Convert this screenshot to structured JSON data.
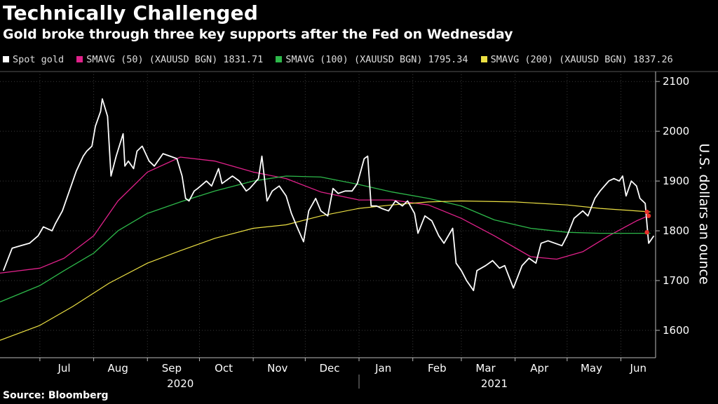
{
  "title": "Technically Challenged",
  "subtitle": "Gold broke through three key supports after the Fed on Wednesday",
  "source": "Source: Bloomberg",
  "legend": [
    {
      "label": "Spot gold",
      "color": "#ffffff"
    },
    {
      "label": "SMAVG (50) (XAUUSD BGN) 1831.71",
      "color": "#e0218a"
    },
    {
      "label": "SMAVG (100) (XAUUSD BGN) 1795.34",
      "color": "#2db84a"
    },
    {
      "label": "SMAVG (200) (XAUUSD BGN) 1837.26",
      "color": "#ece043"
    }
  ],
  "chart_data": {
    "type": "line",
    "ylabel": "U.S. dollars an ounce",
    "ylim": [
      1545,
      2120
    ],
    "xlim": [
      "2020-06-08",
      "2021-06-21"
    ],
    "yticks": [
      1600,
      1700,
      1800,
      1900,
      2000,
      2100
    ],
    "months": [
      {
        "label": "Jul",
        "date": "2020-07-15"
      },
      {
        "label": "Aug",
        "date": "2020-08-15"
      },
      {
        "label": "Sep",
        "date": "2020-09-15"
      },
      {
        "label": "Oct",
        "date": "2020-10-15"
      },
      {
        "label": "Nov",
        "date": "2020-11-15"
      },
      {
        "label": "Dec",
        "date": "2020-12-15"
      },
      {
        "label": "Jan",
        "date": "2021-01-15"
      },
      {
        "label": "Feb",
        "date": "2021-02-15"
      },
      {
        "label": "Mar",
        "date": "2021-03-15"
      },
      {
        "label": "Apr",
        "date": "2021-04-15"
      },
      {
        "label": "May",
        "date": "2021-05-15"
      },
      {
        "label": "Jun",
        "date": "2021-06-11"
      }
    ],
    "month_starts": [
      "2020-07-01",
      "2020-08-01",
      "2020-09-01",
      "2020-10-01",
      "2020-11-01",
      "2020-12-01",
      "2021-01-01",
      "2021-02-01",
      "2021-03-01",
      "2021-04-01",
      "2021-05-01",
      "2021-06-01"
    ],
    "years": [
      {
        "label": "2020",
        "date": "2020-09-20"
      },
      {
        "label": "2021",
        "date": "2021-03-20"
      }
    ],
    "year_divider": "2021-01-01",
    "series": [
      {
        "name": "Spot gold",
        "color": "#ffffff",
        "width": 1.8,
        "points": [
          [
            "2020-06-10",
            1720
          ],
          [
            "2020-06-15",
            1765
          ],
          [
            "2020-06-20",
            1770
          ],
          [
            "2020-06-25",
            1775
          ],
          [
            "2020-06-30",
            1790
          ],
          [
            "2020-07-03",
            1808
          ],
          [
            "2020-07-08",
            1800
          ],
          [
            "2020-07-10",
            1815
          ],
          [
            "2020-07-14",
            1840
          ],
          [
            "2020-07-18",
            1880
          ],
          [
            "2020-07-22",
            1920
          ],
          [
            "2020-07-26",
            1950
          ],
          [
            "2020-07-28",
            1960
          ],
          [
            "2020-07-31",
            1970
          ],
          [
            "2020-08-02",
            2010
          ],
          [
            "2020-08-05",
            2040
          ],
          [
            "2020-08-06",
            2065
          ],
          [
            "2020-08-09",
            2030
          ],
          [
            "2020-08-11",
            1910
          ],
          [
            "2020-08-14",
            1950
          ],
          [
            "2020-08-18",
            1995
          ],
          [
            "2020-08-19",
            1930
          ],
          [
            "2020-08-21",
            1940
          ],
          [
            "2020-08-24",
            1925
          ],
          [
            "2020-08-26",
            1960
          ],
          [
            "2020-08-29",
            1970
          ],
          [
            "2020-09-02",
            1940
          ],
          [
            "2020-09-05",
            1930
          ],
          [
            "2020-09-10",
            1955
          ],
          [
            "2020-09-14",
            1950
          ],
          [
            "2020-09-18",
            1945
          ],
          [
            "2020-09-21",
            1910
          ],
          [
            "2020-09-23",
            1865
          ],
          [
            "2020-09-25",
            1860
          ],
          [
            "2020-09-28",
            1880
          ],
          [
            "2020-09-30",
            1885
          ],
          [
            "2020-10-05",
            1900
          ],
          [
            "2020-10-08",
            1890
          ],
          [
            "2020-10-12",
            1925
          ],
          [
            "2020-10-14",
            1895
          ],
          [
            "2020-10-20",
            1910
          ],
          [
            "2020-10-24",
            1900
          ],
          [
            "2020-10-28",
            1880
          ],
          [
            "2020-10-30",
            1885
          ],
          [
            "2020-11-04",
            1905
          ],
          [
            "2020-11-06",
            1950
          ],
          [
            "2020-11-09",
            1860
          ],
          [
            "2020-11-12",
            1880
          ],
          [
            "2020-11-16",
            1890
          ],
          [
            "2020-11-20",
            1870
          ],
          [
            "2020-11-23",
            1835
          ],
          [
            "2020-11-26",
            1810
          ],
          [
            "2020-11-30",
            1778
          ],
          [
            "2020-12-03",
            1840
          ],
          [
            "2020-12-07",
            1865
          ],
          [
            "2020-12-10",
            1840
          ],
          [
            "2020-12-14",
            1830
          ],
          [
            "2020-12-17",
            1885
          ],
          [
            "2020-12-20",
            1875
          ],
          [
            "2020-12-24",
            1880
          ],
          [
            "2020-12-28",
            1880
          ],
          [
            "2020-12-31",
            1895
          ],
          [
            "2021-01-04",
            1945
          ],
          [
            "2021-01-06",
            1950
          ],
          [
            "2021-01-08",
            1850
          ],
          [
            "2021-01-11",
            1850
          ],
          [
            "2021-01-14",
            1845
          ],
          [
            "2021-01-18",
            1840
          ],
          [
            "2021-01-22",
            1860
          ],
          [
            "2021-01-26",
            1850
          ],
          [
            "2021-01-29",
            1860
          ],
          [
            "2021-02-02",
            1835
          ],
          [
            "2021-02-04",
            1795
          ],
          [
            "2021-02-08",
            1830
          ],
          [
            "2021-02-12",
            1820
          ],
          [
            "2021-02-16",
            1790
          ],
          [
            "2021-02-19",
            1775
          ],
          [
            "2021-02-24",
            1805
          ],
          [
            "2021-02-26",
            1735
          ],
          [
            "2021-03-01",
            1720
          ],
          [
            "2021-03-04",
            1700
          ],
          [
            "2021-03-08",
            1680
          ],
          [
            "2021-03-10",
            1720
          ],
          [
            "2021-03-15",
            1730
          ],
          [
            "2021-03-19",
            1740
          ],
          [
            "2021-03-23",
            1725
          ],
          [
            "2021-03-26",
            1730
          ],
          [
            "2021-03-31",
            1685
          ],
          [
            "2021-04-05",
            1730
          ],
          [
            "2021-04-09",
            1745
          ],
          [
            "2021-04-13",
            1735
          ],
          [
            "2021-04-16",
            1775
          ],
          [
            "2021-04-20",
            1780
          ],
          [
            "2021-04-24",
            1775
          ],
          [
            "2021-04-28",
            1770
          ],
          [
            "2021-05-01",
            1790
          ],
          [
            "2021-05-05",
            1825
          ],
          [
            "2021-05-10",
            1840
          ],
          [
            "2021-05-13",
            1830
          ],
          [
            "2021-05-17",
            1865
          ],
          [
            "2021-05-20",
            1880
          ],
          [
            "2021-05-25",
            1900
          ],
          [
            "2021-05-28",
            1905
          ],
          [
            "2021-05-31",
            1900
          ],
          [
            "2021-06-02",
            1910
          ],
          [
            "2021-06-04",
            1870
          ],
          [
            "2021-06-07",
            1900
          ],
          [
            "2021-06-10",
            1890
          ],
          [
            "2021-06-12",
            1865
          ],
          [
            "2021-06-15",
            1855
          ],
          [
            "2021-06-16",
            1815
          ],
          [
            "2021-06-17",
            1775
          ],
          [
            "2021-06-18",
            1780
          ],
          [
            "2021-06-20",
            1790
          ]
        ]
      },
      {
        "name": "SMAVG (50) (XAUUSD BGN) 1831.71",
        "color": "#e0218a",
        "width": 1.3,
        "points": [
          [
            "2020-06-08",
            1715
          ],
          [
            "2020-07-01",
            1725
          ],
          [
            "2020-07-15",
            1745
          ],
          [
            "2020-08-01",
            1790
          ],
          [
            "2020-08-15",
            1860
          ],
          [
            "2020-09-01",
            1918
          ],
          [
            "2020-09-20",
            1948
          ],
          [
            "2020-10-10",
            1940
          ],
          [
            "2020-11-01",
            1918
          ],
          [
            "2020-11-20",
            1905
          ],
          [
            "2020-12-10",
            1878
          ],
          [
            "2021-01-01",
            1862
          ],
          [
            "2021-01-20",
            1862
          ],
          [
            "2021-02-10",
            1852
          ],
          [
            "2021-03-01",
            1825
          ],
          [
            "2021-03-20",
            1790
          ],
          [
            "2021-04-10",
            1748
          ],
          [
            "2021-04-25",
            1743
          ],
          [
            "2021-05-10",
            1758
          ],
          [
            "2021-05-25",
            1790
          ],
          [
            "2021-06-10",
            1820
          ],
          [
            "2021-06-18",
            1832
          ]
        ]
      },
      {
        "name": "SMAVG (100) (XAUUSD BGN) 1795.34",
        "color": "#2db84a",
        "width": 1.3,
        "points": [
          [
            "2020-06-08",
            1657
          ],
          [
            "2020-07-01",
            1690
          ],
          [
            "2020-07-15",
            1720
          ],
          [
            "2020-08-01",
            1755
          ],
          [
            "2020-08-15",
            1800
          ],
          [
            "2020-09-01",
            1835
          ],
          [
            "2020-09-20",
            1858
          ],
          [
            "2020-10-10",
            1880
          ],
          [
            "2020-11-01",
            1900
          ],
          [
            "2020-11-20",
            1910
          ],
          [
            "2020-12-10",
            1908
          ],
          [
            "2021-01-01",
            1893
          ],
          [
            "2021-01-20",
            1878
          ],
          [
            "2021-02-10",
            1865
          ],
          [
            "2021-03-01",
            1850
          ],
          [
            "2021-03-20",
            1822
          ],
          [
            "2021-04-10",
            1805
          ],
          [
            "2021-05-01",
            1797
          ],
          [
            "2021-05-20",
            1795
          ],
          [
            "2021-06-18",
            1795
          ]
        ]
      },
      {
        "name": "SMAVG (200) (XAUUSD BGN) 1837.26",
        "color": "#ece043",
        "width": 1.2,
        "points": [
          [
            "2020-06-08",
            1580
          ],
          [
            "2020-07-01",
            1610
          ],
          [
            "2020-07-20",
            1648
          ],
          [
            "2020-08-10",
            1695
          ],
          [
            "2020-09-01",
            1735
          ],
          [
            "2020-09-20",
            1760
          ],
          [
            "2020-10-10",
            1785
          ],
          [
            "2020-11-01",
            1805
          ],
          [
            "2020-11-20",
            1812
          ],
          [
            "2020-12-10",
            1830
          ],
          [
            "2021-01-01",
            1845
          ],
          [
            "2021-01-20",
            1852
          ],
          [
            "2021-02-10",
            1858
          ],
          [
            "2021-03-01",
            1860
          ],
          [
            "2021-04-01",
            1858
          ],
          [
            "2021-05-01",
            1852
          ],
          [
            "2021-05-20",
            1845
          ],
          [
            "2021-06-18",
            1838
          ]
        ]
      }
    ],
    "cross_markers": [
      {
        "date": "2021-06-16",
        "value": 1838
      },
      {
        "date": "2021-06-17",
        "value": 1830
      },
      {
        "date": "2021-06-16",
        "value": 1797
      }
    ]
  }
}
